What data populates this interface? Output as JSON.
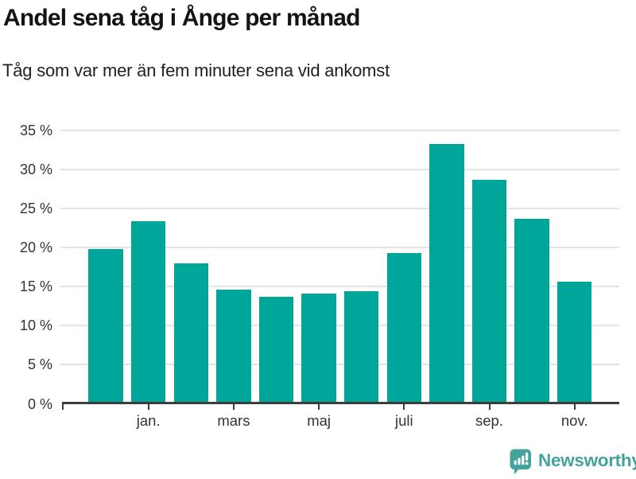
{
  "header": {
    "title": "Andel sena tåg i Ånge per månad",
    "subtitle": "Tåg som var mer än fem minuter sena vid ankomst"
  },
  "chart_data": {
    "type": "bar",
    "title": "Andel sena tåg i Ånge per månad",
    "subtitle": "Tåg som var mer än fem minuter sena vid ankomst",
    "unit": "%",
    "categories": [
      "",
      "jan.",
      "",
      "mars",
      "",
      "maj",
      "",
      "juli",
      "",
      "sep.",
      "",
      "nov."
    ],
    "values": [
      19.8,
      23.3,
      18.0,
      14.6,
      13.7,
      14.1,
      14.4,
      19.3,
      33.2,
      28.6,
      23.7,
      15.6
    ],
    "ylim": [
      0,
      35
    ],
    "y_ticks": [
      0,
      5,
      10,
      15,
      20,
      25,
      30,
      35
    ],
    "y_tick_labels": [
      "0 %",
      "5 %",
      "10 %",
      "15 %",
      "20 %",
      "25 %",
      "30 %",
      "35 %"
    ],
    "x_tick_labels": [
      "jan.",
      "mars",
      "maj",
      "juli",
      "sep.",
      "nov."
    ],
    "grid": "horizontal-only",
    "legend": "none"
  },
  "footer": {
    "brand": "Newsworthy"
  },
  "colors": {
    "bar": "#00a69a",
    "axis": "#3d3d3d",
    "grid": "#e4e4e4",
    "tick_text": "#333333",
    "brand": "#45a29d"
  },
  "icons": {
    "logo": "newsworthy-speech-bubble-bar-chart-icon"
  }
}
